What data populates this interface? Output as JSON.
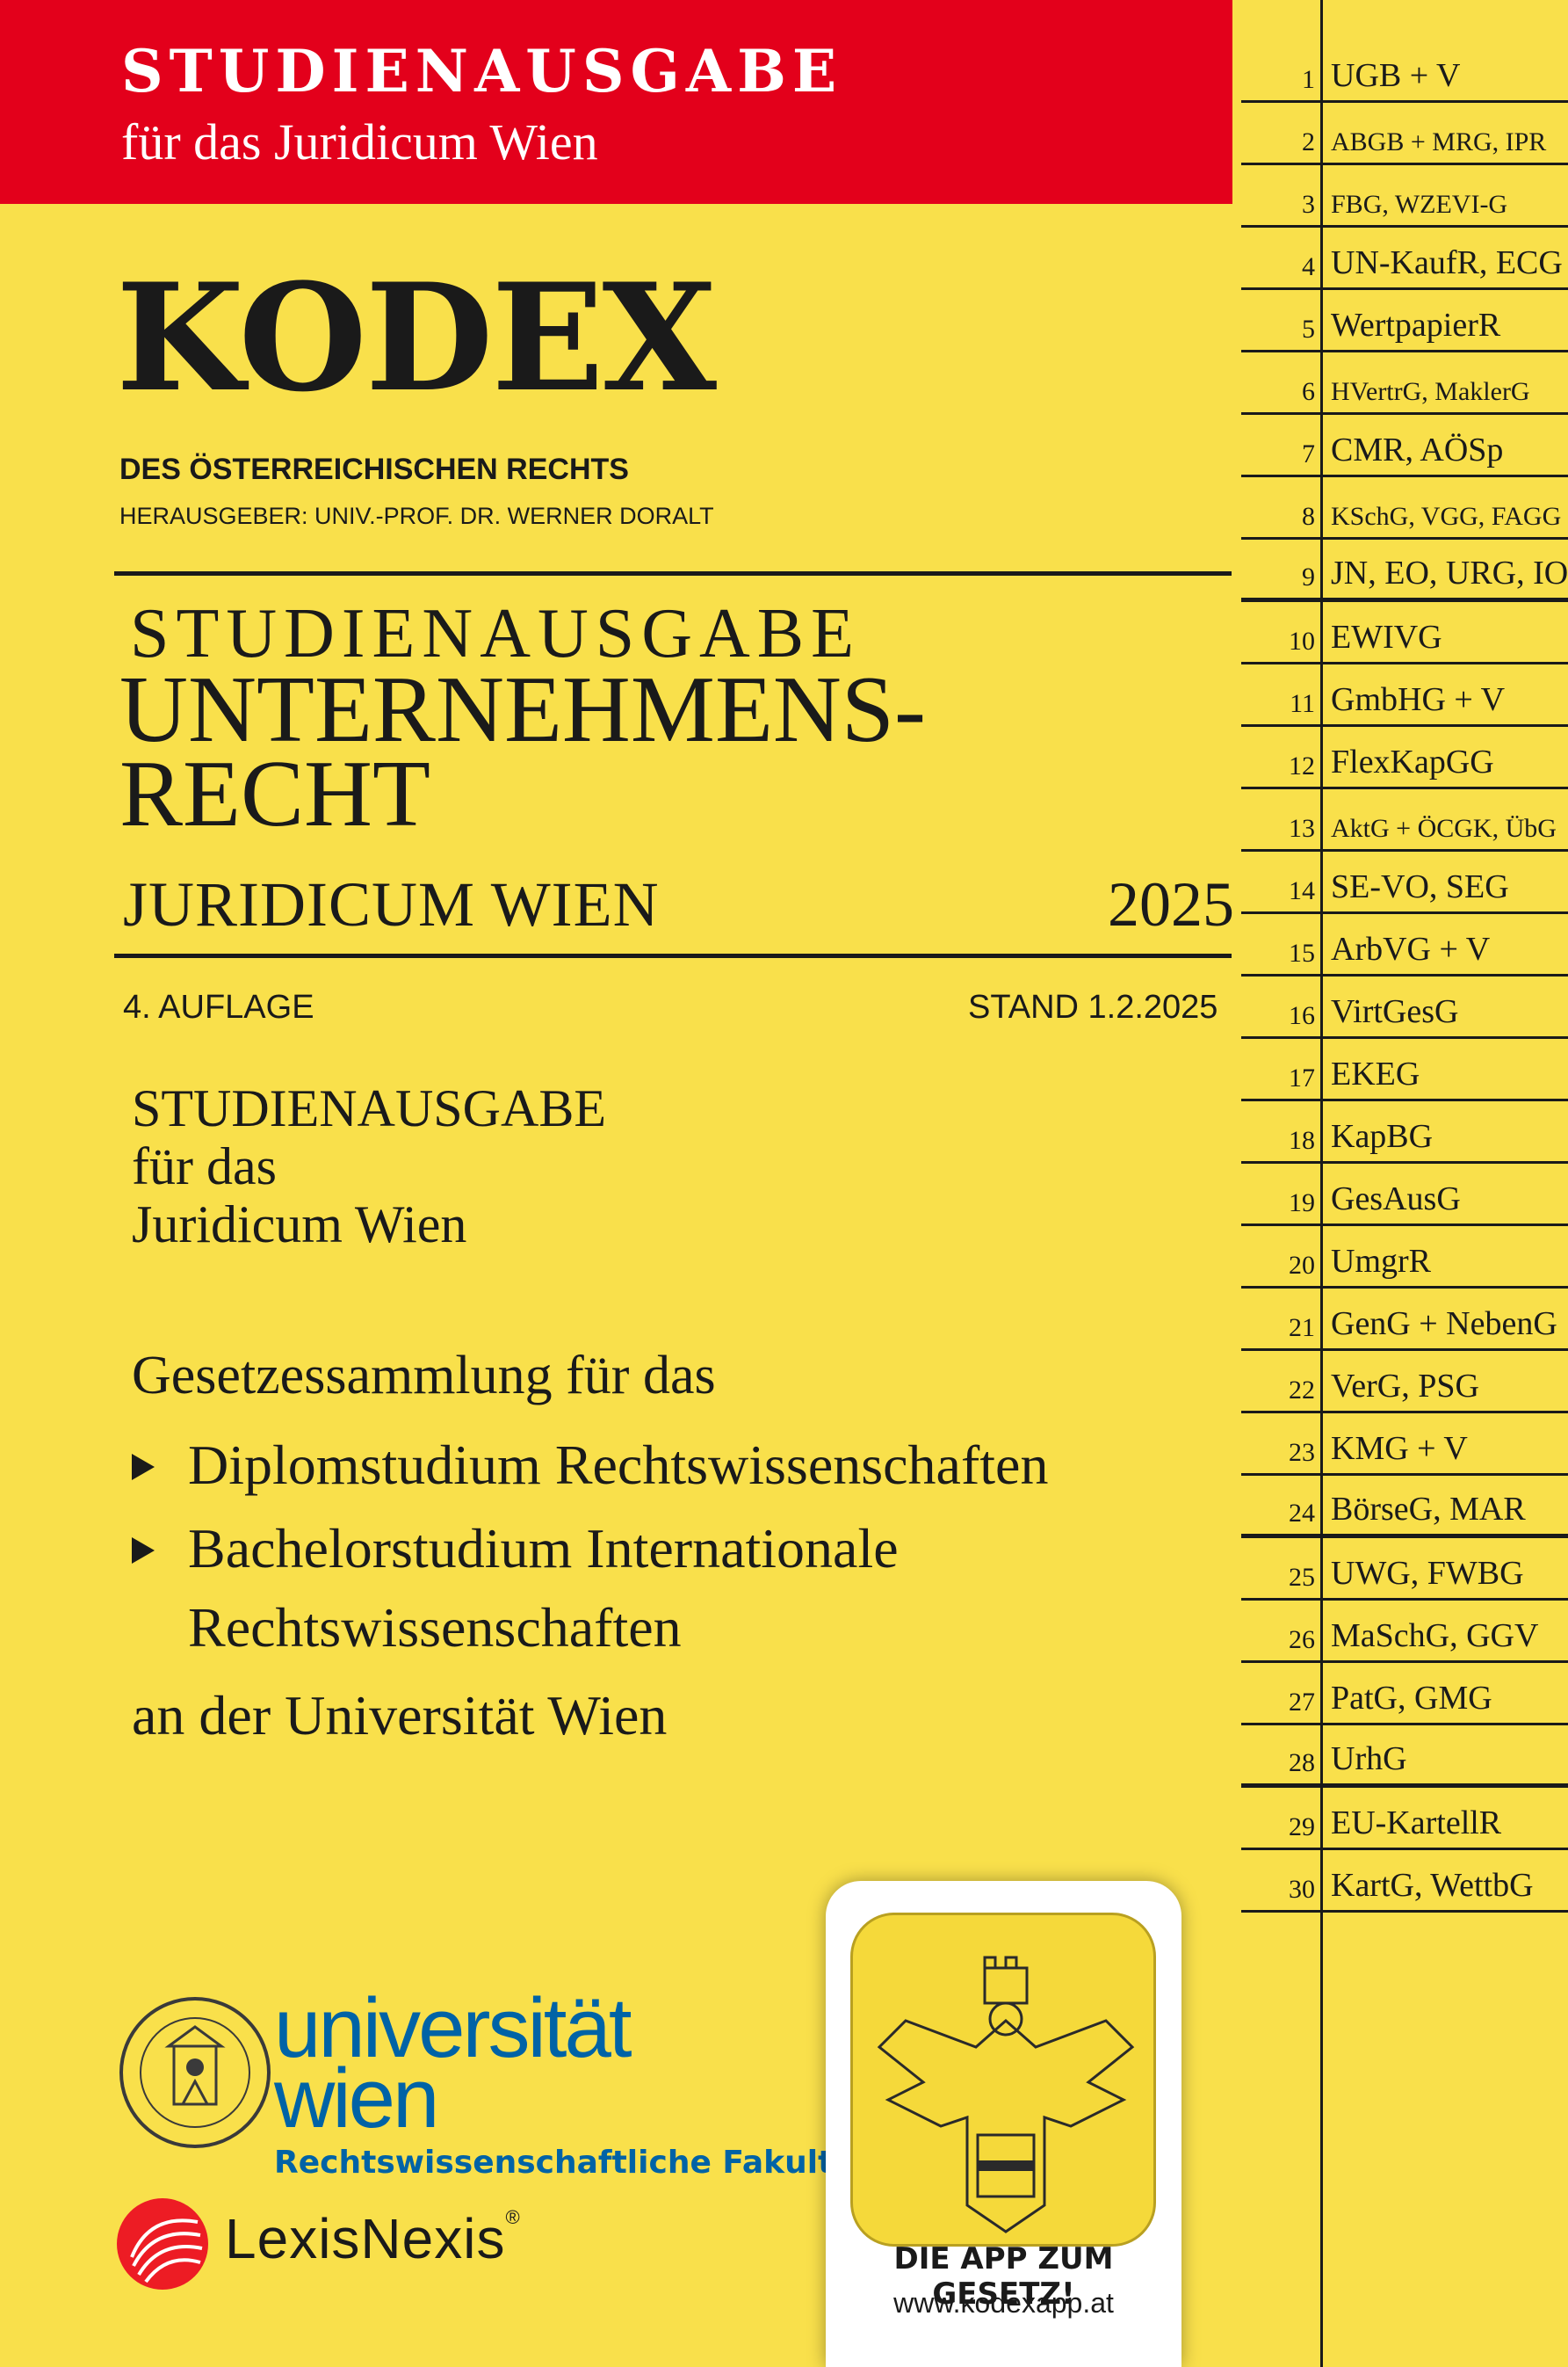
{
  "banner": {
    "line1": "STUDIENAUSGABE",
    "line2": "für das Juridicum Wien",
    "color": "#e3001b"
  },
  "brand": {
    "title": "KODEX",
    "subtitle": "DES ÖSTERREICHISCHEN RECHTS",
    "editor": "HERAUSGEBER: UNIV.-PROF. DR. WERNER DORALT"
  },
  "book": {
    "edition_type": "STUDIENAUSGABE",
    "title_line1": "UNTERNEHMENS-",
    "title_line2": "RECHT",
    "institution": "JURIDICUM WIEN",
    "year": "2025",
    "auflage": "4. AUFLAGE",
    "stand": "STAND 1.2.2025"
  },
  "description": {
    "line1": "STUDIENAUSGABE",
    "line2": "für das",
    "line3": "Juridicum Wien",
    "collection": "Gesetzessammlung für das",
    "programs": [
      "Diplomstudium Rechtswissenschaften",
      "Bachelorstudium Internationale",
      "Rechtswissenschaften"
    ],
    "university": "an der Universität Wien"
  },
  "tabs": [
    {
      "num": "1",
      "label": "UGB + V"
    },
    {
      "num": "2",
      "label": "ABGB + MRG, IPR"
    },
    {
      "num": "3",
      "label": "FBG, WZEVI-G"
    },
    {
      "num": "4",
      "label": "UN-KaufR, ECG"
    },
    {
      "num": "5",
      "label": "WertpapierR"
    },
    {
      "num": "6",
      "label": "HVertrG, MaklerG"
    },
    {
      "num": "7",
      "label": "CMR, AÖSp"
    },
    {
      "num": "8",
      "label": "KSchG, VGG, FAGG"
    },
    {
      "num": "9",
      "label": "JN, EO, URG, IO"
    },
    {
      "num": "10",
      "label": "EWIVG"
    },
    {
      "num": "11",
      "label": "GmbHG + V"
    },
    {
      "num": "12",
      "label": "FlexKapGG"
    },
    {
      "num": "13",
      "label": "AktG + ÖCGK, ÜbG"
    },
    {
      "num": "14",
      "label": "SE-VO, SEG"
    },
    {
      "num": "15",
      "label": "ArbVG + V"
    },
    {
      "num": "16",
      "label": "VirtGesG"
    },
    {
      "num": "17",
      "label": "EKEG"
    },
    {
      "num": "18",
      "label": "KapBG"
    },
    {
      "num": "19",
      "label": "GesAusG"
    },
    {
      "num": "20",
      "label": "UmgrR"
    },
    {
      "num": "21",
      "label": "GenG + NebenG"
    },
    {
      "num": "22",
      "label": "VerG, PSG"
    },
    {
      "num": "23",
      "label": "KMG + V"
    },
    {
      "num": "24",
      "label": "BörseG, MAR"
    },
    {
      "num": "25",
      "label": "UWG, FWBG"
    },
    {
      "num": "26",
      "label": "MaSchG, GGV"
    },
    {
      "num": "27",
      "label": "PatG, GMG"
    },
    {
      "num": "28",
      "label": "UrhG"
    },
    {
      "num": "29",
      "label": "EU-KartellR"
    },
    {
      "num": "30",
      "label": "KartG, WettbG"
    }
  ],
  "logos": {
    "uni_line1": "universität",
    "uni_line2": "wien",
    "faculty": "Rechtswissenschaftliche Fakultät",
    "publisher": "LexisNexis",
    "uni_color": "#0063a6"
  },
  "app": {
    "tagline": "DIE APP ZUM GESETZ!",
    "url": "www.kodexapp.at"
  }
}
